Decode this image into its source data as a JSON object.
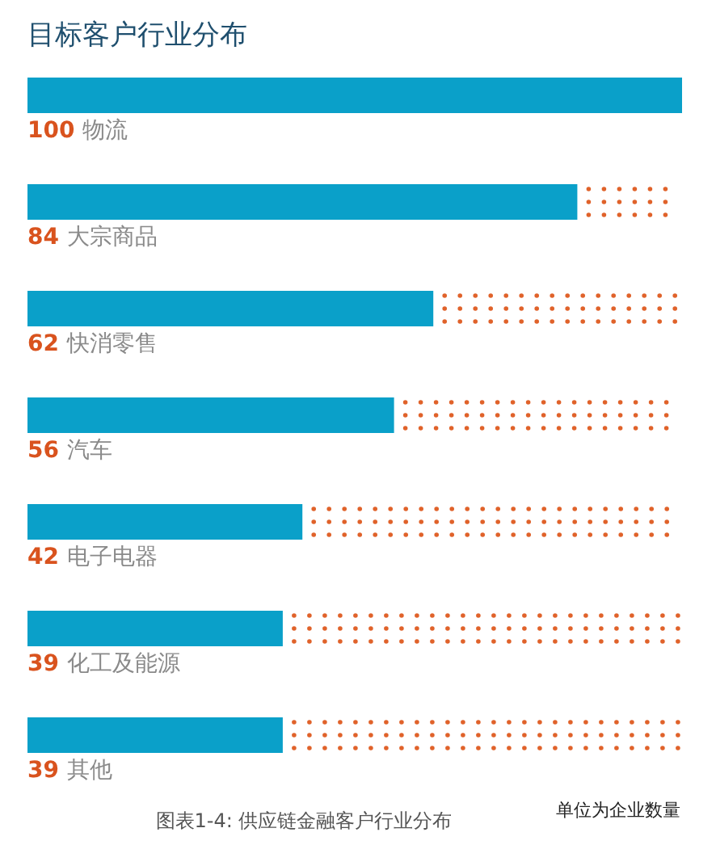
{
  "chart_data": {
    "type": "bar",
    "orientation": "horizontal",
    "title": "目标客户行业分布",
    "categories": [
      "物流",
      "大宗商品",
      "快消零售",
      "汽车",
      "电子电器",
      "化工及能源",
      "其他"
    ],
    "values": [
      100,
      84,
      62,
      56,
      42,
      39,
      39
    ],
    "color": "#0aa0c9",
    "data_labels": true,
    "annotations": [
      "单位为企业数量",
      "图表1-4: 供应链金融客户行业分布"
    ]
  }
}
